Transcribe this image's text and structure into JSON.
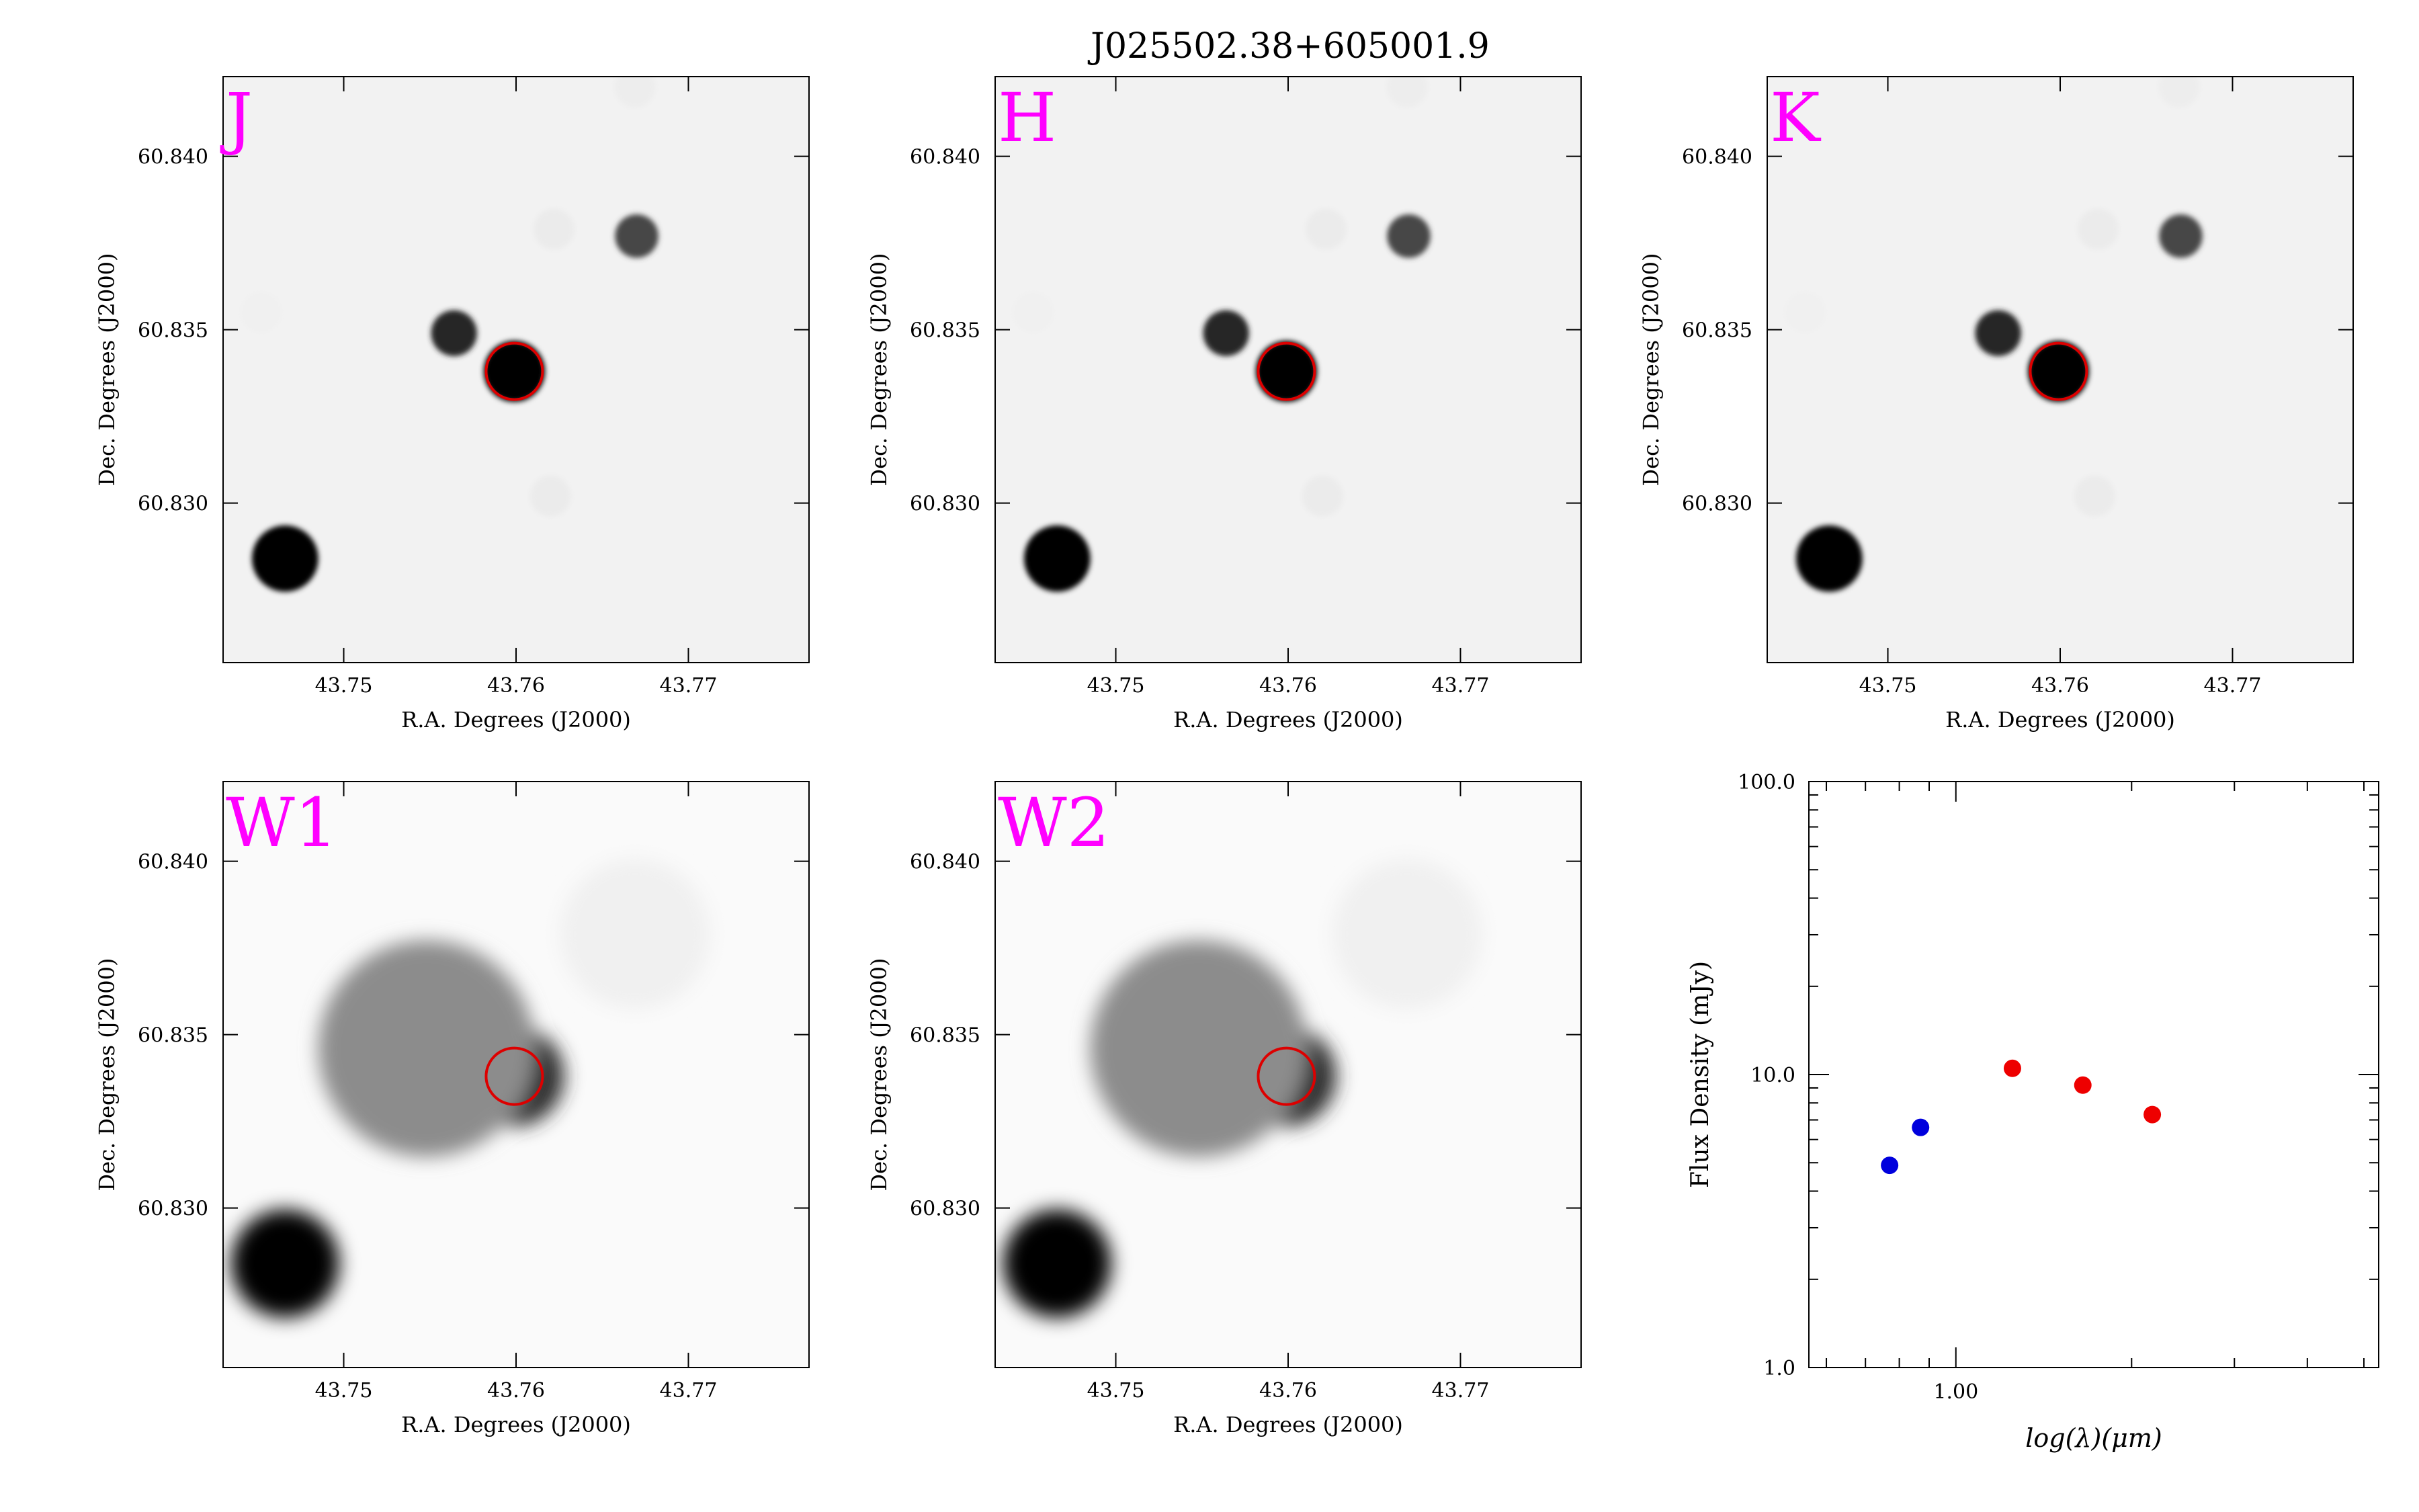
{
  "figure": {
    "title": "J025502.38+605001.9"
  },
  "image_panels": [
    {
      "band": "J",
      "xlabel": "R.A. Degrees (J2000)",
      "ylabel": "Dec. Degrees (J2000)",
      "style": "sharp"
    },
    {
      "band": "H",
      "xlabel": "R.A. Degrees (J2000)",
      "ylabel": "Dec. Degrees (J2000)",
      "style": "sharp"
    },
    {
      "band": "K",
      "xlabel": "R.A. Degrees (J2000)",
      "ylabel": "Dec. Degrees (J2000)",
      "style": "sharp"
    },
    {
      "band": "W1",
      "xlabel": "R.A. Degrees (J2000)",
      "ylabel": "Dec. Degrees (J2000)",
      "style": "blurred"
    },
    {
      "band": "W2",
      "xlabel": "R.A. Degrees (J2000)",
      "ylabel": "Dec. Degrees (J2000)",
      "style": "blurred"
    }
  ],
  "image_axes": {
    "xlim": [
      43.743,
      43.777
    ],
    "ylim": [
      60.8254,
      60.8423
    ],
    "xticks": [
      43.75,
      43.76,
      43.77
    ],
    "xtick_labels": [
      "43.75",
      "43.76",
      "43.77"
    ],
    "yticks": [
      60.83,
      60.835,
      60.84
    ],
    "ytick_labels": [
      "60.830",
      "60.835",
      "60.840"
    ]
  },
  "sources": [
    {
      "ra": 43.7599,
      "dec": 60.8338,
      "size": 1.2,
      "j": 1.0,
      "w": 0.82
    },
    {
      "ra": 43.7466,
      "dec": 60.8284,
      "size": 1.3,
      "j": 1.0,
      "w": 1.0
    },
    {
      "ra": 43.7564,
      "dec": 60.8349,
      "size": 0.9,
      "j": 0.85,
      "w": 0.0
    },
    {
      "ra": 43.767,
      "dec": 60.8377,
      "size": 0.85,
      "j": 0.72,
      "w": 0.0
    },
    {
      "ra": 43.7548,
      "dec": 60.8346,
      "size": 2.6,
      "j": 0.0,
      "w": 0.45
    },
    {
      "ra": 43.7669,
      "dec": 60.8379,
      "size": 1.8,
      "j": 0.0,
      "w": 0.06
    },
    {
      "ra": 43.7622,
      "dec": 60.8379,
      "size": 0.8,
      "j": 0.08,
      "w": 0.0
    },
    {
      "ra": 43.762,
      "dec": 60.8302,
      "size": 0.8,
      "j": 0.08,
      "w": 0.0
    },
    {
      "ra": 43.7452,
      "dec": 60.8355,
      "size": 0.8,
      "j": 0.06,
      "w": 0.0
    },
    {
      "ra": 43.7669,
      "dec": 60.842,
      "size": 0.8,
      "j": 0.07,
      "w": 0.0
    }
  ],
  "target_marker": {
    "ra": 43.7599,
    "dec": 60.8338,
    "color": "#dd0000"
  },
  "band_label_color": "#ff00ff",
  "chart_data": {
    "type": "scatter",
    "title": "",
    "xlabel": "log(λ)(μm)",
    "ylabel": "Flux Density (mJy)",
    "xscale": "log",
    "yscale": "log",
    "xlim": [
      0.56,
      5.3
    ],
    "ylim": [
      1.0,
      100.0
    ],
    "xticks": [
      1.0
    ],
    "xtick_labels": [
      "1.00"
    ],
    "yticks": [
      1.0,
      10.0,
      100.0
    ],
    "ytick_labels": [
      "1.0",
      "10.0",
      "100.0"
    ],
    "grid": false,
    "series": [
      {
        "color": "#0000dd",
        "x": [
          0.77,
          0.87
        ],
        "y": [
          4.9,
          6.6
        ]
      },
      {
        "color": "#ee0000",
        "x": [
          1.25,
          1.65,
          2.17
        ],
        "y": [
          10.5,
          9.2,
          7.3
        ]
      }
    ]
  }
}
